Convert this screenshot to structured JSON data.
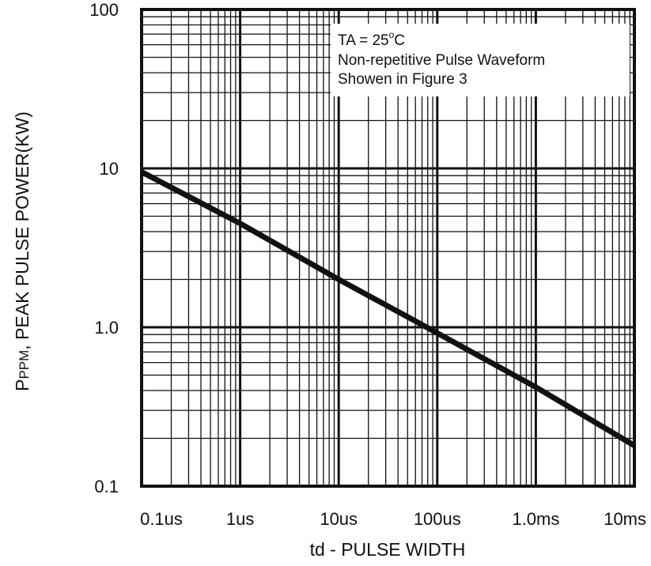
{
  "chart_data": {
    "type": "line",
    "xscale": "log",
    "yscale": "log",
    "xlim": [
      "0.1us",
      "10ms"
    ],
    "ylim": [
      0.1,
      100
    ],
    "x_tick_labels": [
      "0.1us",
      "1us",
      "10us",
      "100us",
      "1.0ms",
      "10ms"
    ],
    "y_tick_labels": [
      "0.1",
      "1.0",
      "10",
      "100"
    ],
    "ylabel": {
      "main": "P",
      "subscript": "PPM",
      "rest": ", PEAK PULSE POWER(KW)"
    },
    "xlabel": "td - PULSE WIDTH",
    "annotation": {
      "line1_prefix": "TA = 25",
      "line1_degree": "o",
      "line1_suffix": "C",
      "line2": "Non-repetitive Pulse Waveform",
      "line3": "Showen in Figure 3"
    },
    "grid": true,
    "series": [
      {
        "points": [
          {
            "x": "0.1us",
            "y": 9.5
          },
          {
            "x": "1us",
            "y": 4.5
          },
          {
            "x": "10us",
            "y": 2.0
          },
          {
            "x": "100us",
            "y": 0.92
          },
          {
            "x": "1.0ms",
            "y": 0.42
          },
          {
            "x": "10ms",
            "y": 0.18
          }
        ]
      }
    ]
  }
}
